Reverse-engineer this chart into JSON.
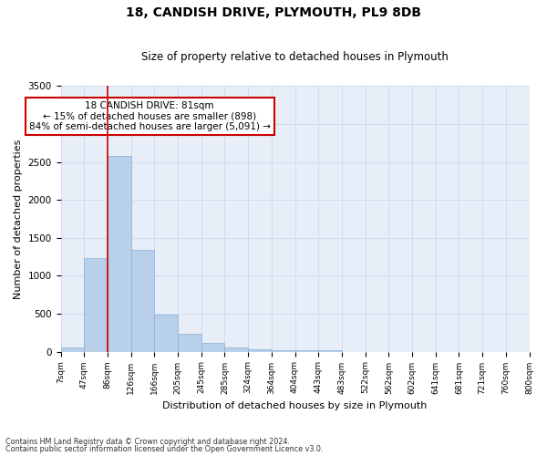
{
  "title1": "18, CANDISH DRIVE, PLYMOUTH, PL9 8DB",
  "title2": "Size of property relative to detached houses in Plymouth",
  "xlabel": "Distribution of detached houses by size in Plymouth",
  "ylabel": "Number of detached properties",
  "footer1": "Contains HM Land Registry data © Crown copyright and database right 2024.",
  "footer2": "Contains public sector information licensed under the Open Government Licence v3.0.",
  "bin_labels": [
    "7sqm",
    "47sqm",
    "86sqm",
    "126sqm",
    "166sqm",
    "205sqm",
    "245sqm",
    "285sqm",
    "324sqm",
    "364sqm",
    "404sqm",
    "443sqm",
    "483sqm",
    "522sqm",
    "562sqm",
    "602sqm",
    "641sqm",
    "681sqm",
    "721sqm",
    "760sqm",
    "800sqm"
  ],
  "bar_values": [
    50,
    1230,
    2580,
    1340,
    490,
    230,
    120,
    50,
    30,
    20,
    20,
    20,
    0,
    0,
    0,
    0,
    0,
    0,
    0,
    0
  ],
  "bar_color": "#b8d0ea",
  "bar_edge_color": "#8ab0d4",
  "ylim": [
    0,
    3500
  ],
  "yticks": [
    0,
    500,
    1000,
    1500,
    2000,
    2500,
    3000,
    3500
  ],
  "property_line_bin": 2,
  "annotation_text": "18 CANDISH DRIVE: 81sqm\n← 15% of detached houses are smaller (898)\n84% of semi-detached houses are larger (5,091) →",
  "annotation_box_color": "#ffffff",
  "annotation_box_edge_color": "#cc0000",
  "grid_color": "#d0dced",
  "background_color": "#e8eef8",
  "n_bins": 20
}
